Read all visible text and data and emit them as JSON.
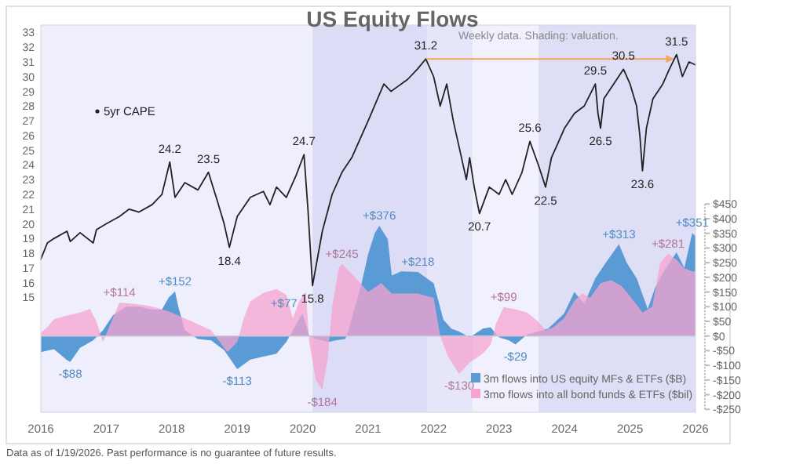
{
  "chart_data": {
    "type": "line",
    "title": "US Equity Flows",
    "subtitle": "Weekly data. Shading: valuation.",
    "xlim": [
      2016,
      2026
    ],
    "xticks": [
      2016,
      2017,
      2018,
      2019,
      2020,
      2021,
      2022,
      2023,
      2024,
      2025,
      2026
    ],
    "ylim": [
      7.2,
      33.5
    ],
    "yticks": [
      15,
      16,
      17,
      18,
      19,
      20,
      21,
      22,
      23,
      24,
      25,
      26,
      27,
      28,
      29,
      30,
      31,
      32,
      33
    ],
    "y2lim": [
      -260,
      1060
    ],
    "y2ticks": [
      {
        "value": -250,
        "label": "-$250"
      },
      {
        "value": -200,
        "label": "-$200"
      },
      {
        "value": -150,
        "label": "-$150"
      },
      {
        "value": -100,
        "label": "-$100"
      },
      {
        "value": -50,
        "label": "-$50"
      },
      {
        "value": 0,
        "label": "$0"
      },
      {
        "value": 50,
        "label": "$50"
      },
      {
        "value": 100,
        "label": "$100"
      },
      {
        "value": 150,
        "label": "$150"
      },
      {
        "value": 200,
        "label": "$200"
      },
      {
        "value": 250,
        "label": "$250"
      },
      {
        "value": 300,
        "label": "$300"
      },
      {
        "value": 350,
        "label": "$350"
      },
      {
        "value": 400,
        "label": "$400"
      },
      {
        "value": 450,
        "label": "$450"
      }
    ],
    "legend": "bottom right",
    "bands": [
      {
        "axis": "x",
        "from": 2016,
        "to": 2020.15,
        "color": "#eeeefc"
      },
      {
        "axis": "x",
        "from": 2020.15,
        "to": 2021.9,
        "color": "#dcdcf7"
      },
      {
        "axis": "x",
        "from": 2021.9,
        "to": 2022.6,
        "color": "#e6e6fa"
      },
      {
        "axis": "x",
        "from": 2022.6,
        "to": 2023.6,
        "color": "#f1f1fd"
      },
      {
        "axis": "x",
        "from": 2023.6,
        "to": 2026,
        "color": "#dedef7"
      }
    ],
    "series": [
      {
        "name": "5yr CAPE",
        "axis": "y",
        "value_labels": [
          null,
          null,
          null,
          null,
          null,
          null,
          null,
          null,
          null,
          null,
          null,
          null,
          null,
          null,
          "24.2",
          null,
          null,
          null,
          "23.5",
          null,
          null,
          "18.4",
          null,
          null,
          null,
          null,
          null,
          null,
          null,
          "24.7",
          null,
          "15.8",
          null,
          null,
          null,
          null,
          null,
          null,
          null,
          null,
          null,
          null,
          "31.2",
          null,
          null,
          null,
          null,
          null,
          null,
          null,
          null,
          "20.7",
          null,
          null,
          null,
          null,
          null,
          "25.6",
          null,
          "22.5",
          null,
          null,
          null,
          null,
          null,
          "29.5",
          null,
          "26.5",
          null,
          null,
          "30.5",
          null,
          null,
          null,
          "23.6",
          null,
          null,
          null,
          null,
          "31.5",
          null,
          null,
          null
        ],
        "color": "#222222",
        "x": [
          2016,
          2016.1,
          2016.2,
          2016.4,
          2016.45,
          2016.6,
          2016.8,
          2016.85,
          2017,
          2017.2,
          2017.35,
          2017.5,
          2017.7,
          2017.85,
          2017.97,
          2018.05,
          2018.2,
          2018.4,
          2018.56,
          2018.7,
          2018.8,
          2018.88,
          2019,
          2019.2,
          2019.4,
          2019.5,
          2019.6,
          2019.75,
          2019.9,
          2020.02,
          2020.08,
          2020.15,
          2020.3,
          2020.45,
          2020.6,
          2020.75,
          2020.9,
          2021,
          2021.24,
          2021.35,
          2021.6,
          2021.75,
          2021.88,
          2022,
          2022.1,
          2022.2,
          2022.3,
          2022.4,
          2022.5,
          2022.55,
          2022.62,
          2022.7,
          2022.85,
          2023,
          2023.1,
          2023.2,
          2023.35,
          2023.47,
          2023.6,
          2023.71,
          2023.8,
          2023.9,
          2024,
          2024.15,
          2024.3,
          2024.47,
          2024.51,
          2024.55,
          2024.6,
          2024.75,
          2024.9,
          2025,
          2025.1,
          2025.15,
          2025.19,
          2025.25,
          2025.35,
          2025.5,
          2025.6,
          2025.71,
          2025.8,
          2025.9,
          2026
        ],
        "values": [
          17.6,
          18.7,
          19,
          19.5,
          18.8,
          19.4,
          18.7,
          19.6,
          20,
          20.5,
          21,
          20.8,
          21.3,
          22,
          24.2,
          21.8,
          22.8,
          22.3,
          23.5,
          21.5,
          20,
          18.4,
          20.5,
          21.8,
          22.2,
          21.3,
          22.5,
          21.8,
          23.3,
          24.7,
          21,
          15.8,
          19.5,
          22,
          23.5,
          24.5,
          26,
          27,
          29.5,
          29,
          29.8,
          30.5,
          31.2,
          30,
          28,
          29.5,
          27,
          25,
          23,
          24.5,
          22.5,
          20.7,
          22.5,
          22,
          23,
          22,
          23.5,
          25.6,
          24,
          22.5,
          24.5,
          25.5,
          26.5,
          27.5,
          28,
          29.5,
          27.5,
          26.5,
          28.5,
          29.5,
          30.5,
          29.5,
          28,
          26,
          23.6,
          26.5,
          28.5,
          29.5,
          30.5,
          31.5,
          30,
          31,
          30.8
        ]
      },
      {
        "axis": "y",
        "color": "#f4a460",
        "x": [
          2021.9,
          2025.65
        ],
        "values": [
          31.2,
          31.2
        ]
      },
      {
        "name": "3m flows into US equity MFs & ETFs ($B)",
        "type": "area",
        "axis": "y2",
        "color": "#5b9bd5",
        "x": [
          2016,
          2016.2,
          2016.4,
          2016.45,
          2016.6,
          2016.8,
          2016.95,
          2017.1,
          2017.3,
          2017.5,
          2017.7,
          2017.85,
          2017.95,
          2018.05,
          2018.1,
          2018.2,
          2018.4,
          2018.6,
          2018.8,
          2019,
          2019.2,
          2019.4,
          2019.6,
          2019.75,
          2019.85,
          2019.95,
          2020,
          2020.1,
          2020.2,
          2020.4,
          2020.5,
          2020.65,
          2020.7,
          2020.8,
          2020.9,
          2021,
          2021.1,
          2021.17,
          2021.3,
          2021.36,
          2021.5,
          2021.76,
          2022,
          2022.15,
          2022.27,
          2022.39,
          2022.55,
          2022.75,
          2022.87,
          2023,
          2023.15,
          2023.25,
          2023.43,
          2023.75,
          2023.99,
          2024.15,
          2024.3,
          2024.47,
          2024.63,
          2024.83,
          2024.95,
          2025.1,
          2025.27,
          2025.38,
          2025.5,
          2025.71,
          2025.83,
          2025.95,
          2026
        ],
        "value_labels": [
          null,
          null,
          null,
          "-$88",
          null,
          null,
          null,
          null,
          null,
          null,
          null,
          null,
          null,
          "+$152",
          null,
          null,
          null,
          null,
          null,
          "-$113",
          null,
          null,
          null,
          null,
          null,
          null,
          "+$77",
          null,
          null,
          null,
          null,
          null,
          null,
          null,
          null,
          null,
          null,
          "+$376",
          null,
          null,
          null,
          "+$218",
          null,
          null,
          null,
          null,
          null,
          null,
          null,
          null,
          null,
          "-$29",
          null,
          null,
          null,
          null,
          null,
          null,
          null,
          "+$313",
          null,
          null,
          null,
          null,
          null,
          null,
          null,
          "+$351",
          null
        ],
        "values": [
          -55,
          -45,
          -82,
          -88,
          -40,
          -15,
          20,
          70,
          100,
          100,
          90,
          90,
          130,
          152,
          100,
          20,
          -10,
          -15,
          -48,
          -113,
          -80,
          -70,
          -60,
          -20,
          20,
          60,
          77,
          0,
          -10,
          -20,
          -15,
          -10,
          20,
          100,
          180,
          280,
          350,
          376,
          330,
          206,
          220,
          218,
          180,
          55,
          25,
          15,
          -5,
          25,
          30,
          -5,
          -15,
          -29,
          5,
          25,
          76,
          150,
          110,
          197,
          250,
          313,
          250,
          197,
          92,
          163,
          215,
          285,
          232,
          351,
          340
        ]
      },
      {
        "name": "3mo flows into all bond funds & ETFs ($bil)",
        "type": "area",
        "axis": "y2",
        "color": "#f5a3cf",
        "x": [
          2016,
          2016.1,
          2016.2,
          2016.4,
          2016.6,
          2016.75,
          2016.85,
          2016.95,
          2017.1,
          2017.2,
          2017.4,
          2017.6,
          2017.8,
          2018,
          2018.2,
          2018.4,
          2018.6,
          2018.7,
          2018.85,
          2019,
          2019.1,
          2019.2,
          2019.4,
          2019.6,
          2019.75,
          2019.85,
          2019.95,
          2020.05,
          2020.1,
          2020.2,
          2020.3,
          2020.38,
          2020.45,
          2020.55,
          2020.6,
          2020.8,
          2021,
          2021.2,
          2021.36,
          2021.76,
          2022,
          2022.1,
          2022.22,
          2022.39,
          2022.55,
          2022.75,
          2022.87,
          2022.95,
          2023.07,
          2023.27,
          2023.43,
          2023.59,
          2023.71,
          2023.83,
          2023.99,
          2024.15,
          2024.27,
          2024.39,
          2024.55,
          2024.71,
          2024.87,
          2025.02,
          2025.19,
          2025.34,
          2025.46,
          2025.58,
          2025.71,
          2025.83,
          2025.95,
          2026
        ],
        "value_labels": [
          null,
          null,
          null,
          null,
          null,
          null,
          null,
          null,
          null,
          "+$114",
          null,
          null,
          null,
          null,
          null,
          null,
          null,
          null,
          null,
          null,
          null,
          null,
          null,
          null,
          null,
          null,
          null,
          null,
          null,
          null,
          "-$184",
          null,
          null,
          null,
          "+$245",
          null,
          null,
          null,
          null,
          null,
          null,
          null,
          null,
          "-$130",
          null,
          null,
          null,
          null,
          "+$99",
          null,
          null,
          null,
          null,
          null,
          null,
          null,
          null,
          null,
          null,
          null,
          null,
          null,
          null,
          null,
          null,
          "+$281",
          null,
          null,
          null,
          null
        ],
        "values": [
          12,
          30,
          57,
          70,
          80,
          92,
          50,
          -20,
          60,
          114,
          110,
          105,
          95,
          80,
          60,
          40,
          20,
          -10,
          -55,
          -20,
          60,
          118,
          147,
          160,
          140,
          60,
          120,
          150,
          -20,
          -150,
          -184,
          -80,
          100,
          230,
          245,
          200,
          150,
          180,
          145,
          145,
          130,
          0,
          -70,
          -130,
          -90,
          -60,
          -30,
          40,
          99,
          90,
          80,
          50,
          20,
          30,
          60,
          120,
          145,
          130,
          180,
          190,
          170,
          130,
          80,
          100,
          250,
          281,
          260,
          230,
          220,
          220
        ]
      }
    ],
    "annotations": [
      "Data as of 1/19/2026. Past performance is no guarantee of future results."
    ]
  }
}
